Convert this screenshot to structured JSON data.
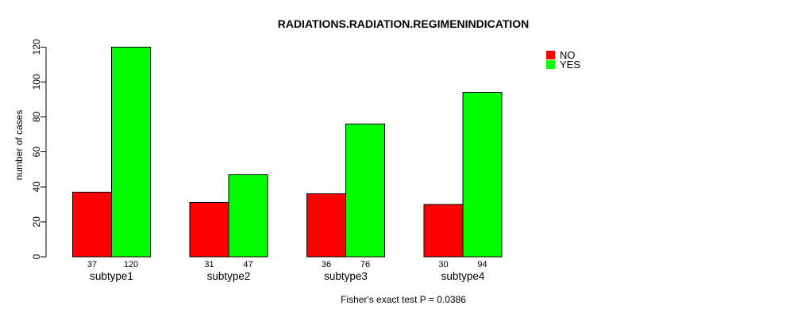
{
  "title": "RADIATIONS.RADIATION.REGIMENINDICATION",
  "ylabel": "number of cases",
  "footer": "Fisher's exact test P = 0.0386",
  "legend": {
    "items": [
      {
        "label": "NO",
        "color": "#ff0000"
      },
      {
        "label": "YES",
        "color": "#00ff00"
      }
    ]
  },
  "chart_data": {
    "type": "bar",
    "title": "RADIATIONS.RADIATION.REGIMENINDICATION",
    "categories": [
      "subtype1",
      "subtype2",
      "subtype3",
      "subtype4"
    ],
    "series": [
      {
        "name": "NO",
        "color": "#ff0000",
        "values": [
          37,
          31,
          36,
          30
        ]
      },
      {
        "name": "YES",
        "color": "#00ff00",
        "values": [
          120,
          47,
          76,
          94
        ]
      }
    ],
    "xlabel": "",
    "ylabel": "number of cases",
    "ylim": [
      0,
      120
    ],
    "yticks": [
      0,
      20,
      40,
      60,
      80,
      100,
      120
    ],
    "grid": false,
    "bar_value_labels": true,
    "legend_position": "top-right",
    "annotation": "Fisher's exact test P = 0.0386"
  }
}
